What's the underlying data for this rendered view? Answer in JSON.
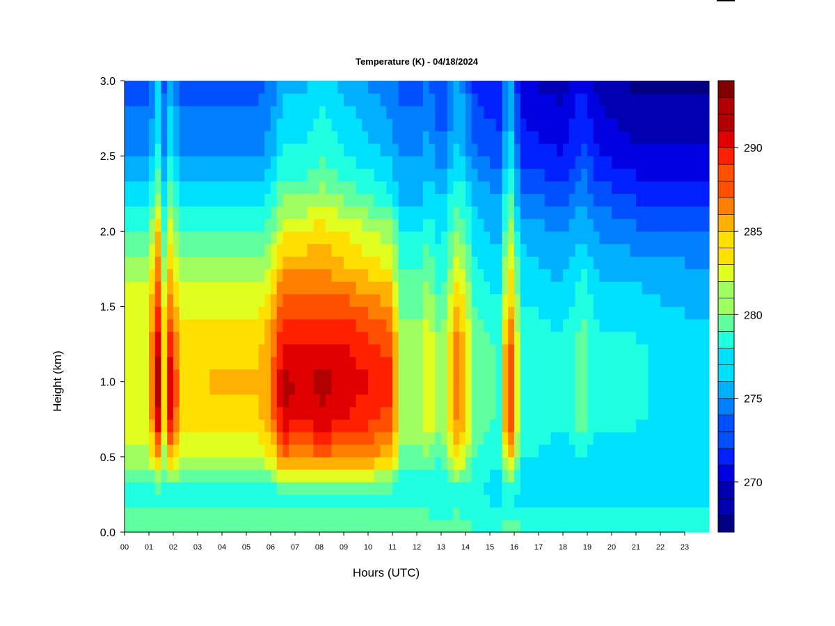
{
  "chart_data": {
    "type": "heatmap",
    "title": "Temperature (K) - 04/18/2024",
    "xlabel": "Hours (UTC)",
    "ylabel": "Height (km)",
    "xlim": [
      0,
      24
    ],
    "ylim": [
      0.0,
      3.0
    ],
    "x_ticks": [
      "00",
      "01",
      "02",
      "03",
      "04",
      "05",
      "06",
      "07",
      "08",
      "09",
      "10",
      "11",
      "12",
      "13",
      "14",
      "15",
      "16",
      "17",
      "18",
      "19",
      "20",
      "21",
      "22",
      "23"
    ],
    "y_ticks": [
      "0.0",
      "0.5",
      "1.0",
      "1.5",
      "2.0",
      "2.5",
      "3.0"
    ],
    "colorbar": {
      "min": 267,
      "max": 294,
      "levels": 27,
      "ticks": [
        "270",
        "275",
        "280",
        "285",
        "290"
      ],
      "colors": [
        "#000080",
        "#0000b0",
        "#0000e0",
        "#0020ff",
        "#0050ff",
        "#0080ff",
        "#00b0ff",
        "#00e0ff",
        "#20ffe0",
        "#60ffa0",
        "#a0ff60",
        "#e0ff20",
        "#ffe000",
        "#ffb000",
        "#ff8000",
        "#ff5000",
        "#ff2000",
        "#e00000",
        "#b00000",
        "#800000"
      ]
    },
    "heights_km": [
      0.05,
      0.25,
      0.5,
      0.75,
      1.0,
      1.25,
      1.5,
      1.75,
      2.0,
      2.25,
      2.5,
      2.75,
      3.0
    ],
    "series": [
      {
        "x": 0.0,
        "values": [
          280,
          278,
          281,
          283,
          283,
          283,
          283,
          281,
          279,
          277,
          275,
          274,
          273
        ]
      },
      {
        "x": 1.0,
        "values": [
          280,
          278,
          281,
          283,
          283,
          283,
          283,
          281,
          279,
          277,
          275,
          274,
          273
        ]
      },
      {
        "x": 1.35,
        "values": [
          280,
          278,
          286,
          292,
          293,
          292,
          289,
          287,
          285,
          281,
          279,
          277,
          277
        ]
      },
      {
        "x": 1.6,
        "values": [
          280,
          278,
          281,
          283,
          283,
          283,
          283,
          281,
          279,
          277,
          275,
          274,
          273
        ]
      },
      {
        "x": 1.9,
        "values": [
          280,
          278,
          285,
          291,
          292,
          290,
          287,
          285,
          283,
          280,
          278,
          277,
          276
        ]
      },
      {
        "x": 2.3,
        "values": [
          280,
          278,
          282,
          284,
          284,
          284,
          283,
          281,
          279,
          277,
          275,
          274,
          273
        ]
      },
      {
        "x": 4.0,
        "values": [
          280,
          278,
          282,
          284,
          285,
          284,
          283,
          281,
          279,
          277,
          275,
          274,
          273
        ]
      },
      {
        "x": 5.5,
        "values": [
          280,
          278,
          282,
          284,
          285,
          284,
          283,
          281,
          279,
          277,
          275,
          274,
          273
        ]
      },
      {
        "x": 6.0,
        "values": [
          280,
          278,
          283,
          286,
          286,
          286,
          284,
          282,
          280,
          278,
          276,
          275,
          274
        ]
      },
      {
        "x": 6.5,
        "values": [
          280,
          278,
          287,
          291,
          292,
          290,
          288,
          286,
          283,
          280,
          278,
          277,
          276
        ]
      },
      {
        "x": 7.3,
        "values": [
          280,
          278,
          286,
          290,
          291,
          290,
          288,
          286,
          283,
          280,
          278,
          277,
          276
        ]
      },
      {
        "x": 8.1,
        "values": [
          280,
          278,
          287,
          291,
          292,
          290,
          288,
          286,
          284,
          281,
          279,
          278,
          277
        ]
      },
      {
        "x": 9.0,
        "values": [
          280,
          278,
          286,
          290,
          291,
          290,
          288,
          285,
          283,
          280,
          278,
          277,
          276
        ]
      },
      {
        "x": 10.0,
        "values": [
          280,
          278,
          286,
          289,
          290,
          289,
          287,
          284,
          282,
          279,
          277,
          276,
          275
        ]
      },
      {
        "x": 11.0,
        "values": [
          280,
          278,
          285,
          288,
          289,
          288,
          286,
          283,
          281,
          278,
          276,
          275,
          274
        ]
      },
      {
        "x": 11.3,
        "values": [
          280,
          278,
          280,
          281,
          281,
          281,
          280,
          279,
          278,
          276,
          275,
          274,
          273
        ]
      },
      {
        "x": 12.1,
        "values": [
          280,
          278,
          280,
          281,
          281,
          281,
          280,
          279,
          278,
          276,
          275,
          274,
          273
        ]
      },
      {
        "x": 12.5,
        "values": [
          280,
          278,
          280,
          284,
          284,
          283,
          282,
          280,
          279,
          277,
          276,
          275,
          274
        ]
      },
      {
        "x": 13.0,
        "values": [
          279,
          278,
          279,
          280,
          280,
          280,
          279,
          278,
          277,
          276,
          274,
          273,
          272
        ]
      },
      {
        "x": 13.7,
        "values": [
          280,
          278,
          284,
          287,
          287,
          287,
          285,
          283,
          281,
          279,
          277,
          276,
          276
        ]
      },
      {
        "x": 14.4,
        "values": [
          279,
          278,
          279,
          280,
          280,
          280,
          279,
          278,
          277,
          276,
          274,
          273,
          272
        ]
      },
      {
        "x": 15.4,
        "values": [
          279,
          277,
          278,
          279,
          279,
          279,
          278,
          277,
          276,
          275,
          273,
          272,
          271
        ]
      },
      {
        "x": 15.8,
        "values": [
          280,
          278,
          285,
          290,
          290,
          289,
          286,
          284,
          282,
          280,
          278,
          277,
          276
        ]
      },
      {
        "x": 16.3,
        "values": [
          279,
          277,
          278,
          279,
          279,
          279,
          278,
          277,
          276,
          274,
          272,
          271,
          270
        ]
      },
      {
        "x": 18.0,
        "values": [
          279,
          277,
          277,
          278,
          278,
          278,
          277,
          276,
          275,
          273,
          271,
          270,
          269
        ]
      },
      {
        "x": 18.8,
        "values": [
          279,
          277,
          278,
          280,
          280,
          280,
          279,
          278,
          276,
          275,
          273,
          272,
          271
        ]
      },
      {
        "x": 19.5,
        "values": [
          279,
          277,
          277,
          278,
          278,
          278,
          277,
          276,
          275,
          273,
          271,
          270,
          269
        ]
      },
      {
        "x": 21.0,
        "values": [
          279,
          277,
          277,
          278,
          278,
          278,
          277,
          276,
          274,
          272,
          270,
          269,
          268
        ]
      },
      {
        "x": 23.9,
        "values": [
          279,
          277,
          277,
          277,
          277,
          277,
          276,
          275,
          274,
          272,
          270,
          269,
          268
        ]
      }
    ]
  }
}
